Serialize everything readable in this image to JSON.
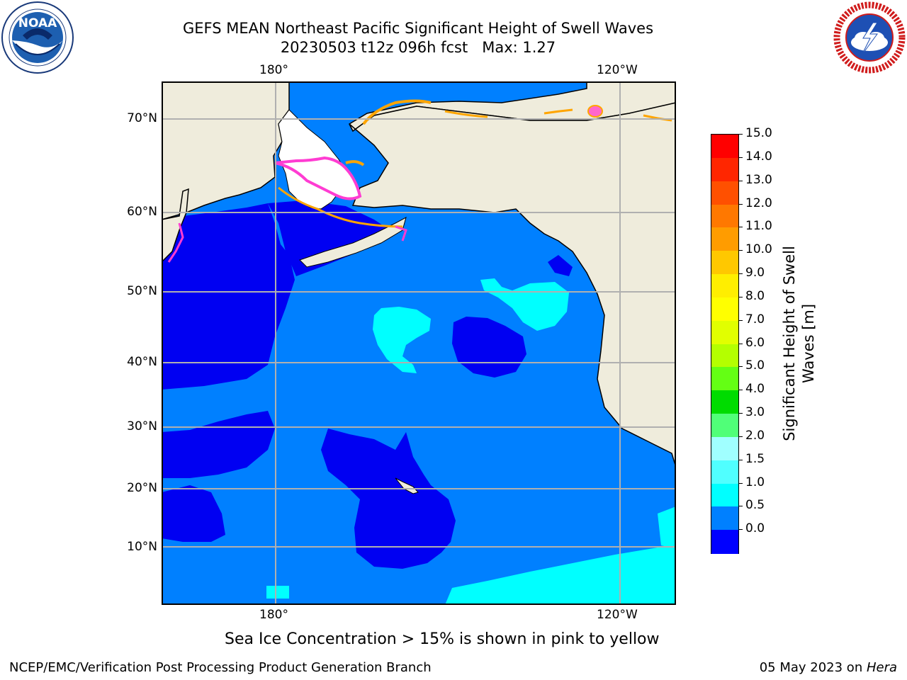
{
  "header": {
    "title_line1": "GEFS MEAN Northeast Pacific Significant Height of Swell Waves",
    "title_line2": "20230503 t12z 096h fcst   Max: 1.27"
  },
  "logos": {
    "left": "NOAA",
    "left_ring_text": "NATIONAL OCEANIC AND ATMOSPHERIC ADMINISTRATION • U.S. DEPARTMENT OF COMMERCE",
    "right_ring_text": "NATIONAL WEATHER SERVICE"
  },
  "map": {
    "lon_labels_top": [
      "180°",
      "120°W"
    ],
    "lon_labels_bottom": [
      "180°",
      "120°W"
    ],
    "lat_labels": [
      "70°N",
      "60°N",
      "50°N",
      "40°N",
      "30°N",
      "20°N",
      "10°N"
    ],
    "colors": {
      "land": "#efecdc",
      "ocean_base": "#0080ff",
      "low_swell": "#0000f2",
      "mid_swell": "#00ffff",
      "ice_pink": "#ff3cd2",
      "ice_orange": "#ffa500",
      "grid": "#b0b0b0"
    }
  },
  "colorbar": {
    "label": "Significant Height of Swell Waves [m]",
    "label_line1": "Significant Height of Swell",
    "label_line2": "Waves [m]",
    "ticks": [
      "15.0",
      "14.0",
      "13.0",
      "12.0",
      "11.0",
      "10.0",
      "9.0",
      "8.0",
      "7.0",
      "6.0",
      "5.0",
      "4.0",
      "3.0",
      "2.0",
      "1.5",
      "1.0",
      "0.5",
      "0.0"
    ],
    "colors_top_to_bottom": [
      "#ff0000",
      "#ff2600",
      "#ff5000",
      "#ff7800",
      "#ff9c00",
      "#ffc800",
      "#ffee00",
      "#ffff00",
      "#e1ff00",
      "#b4ff00",
      "#64ff14",
      "#00dc00",
      "#50ff78",
      "#a0ffff",
      "#50ffff",
      "#00ffff",
      "#0080ff",
      "#0000ff"
    ]
  },
  "notes": {
    "sea_ice": "Sea Ice Concentration > 15% is shown in pink to yellow"
  },
  "footer": {
    "left": "NCEP/EMC/Verification Post Processing Product Generation Branch",
    "right_prefix": "05 May 2023 on ",
    "right_machine": "Hera"
  }
}
